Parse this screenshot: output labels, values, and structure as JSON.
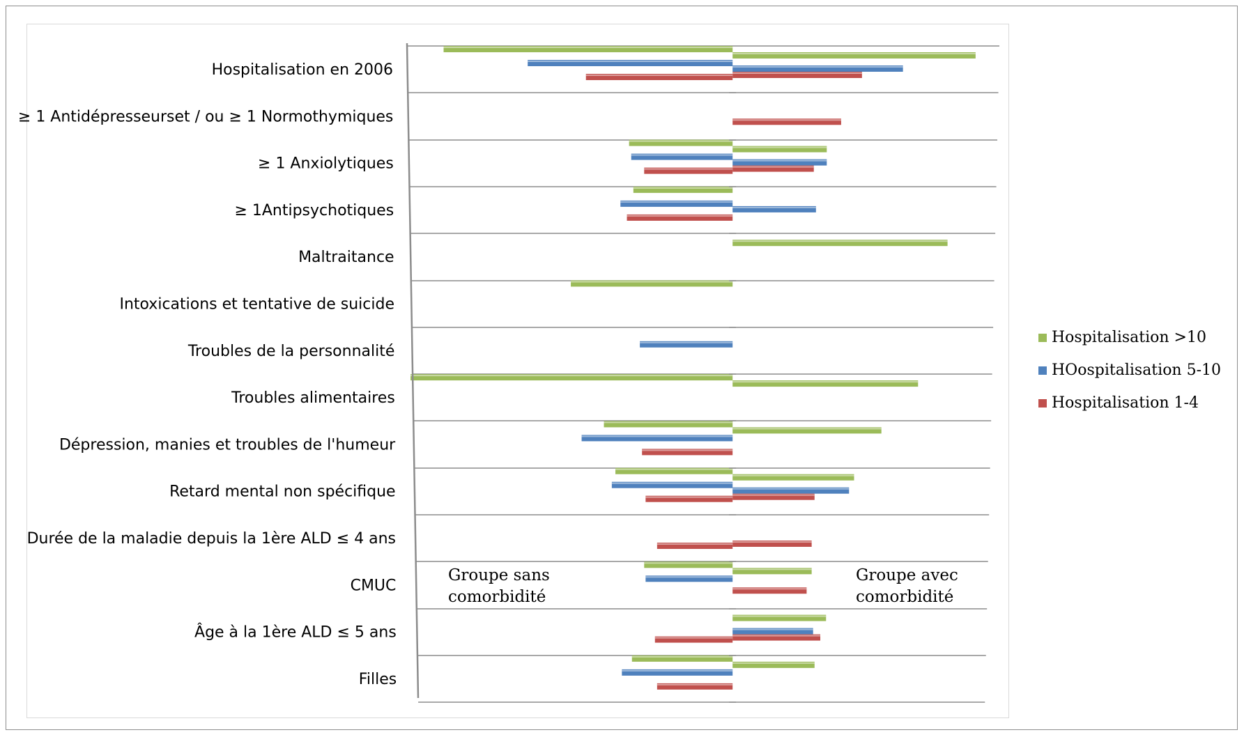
{
  "chart_data": {
    "type": "bar",
    "orientation": "horizontal",
    "title": "",
    "xlabel": "",
    "ylabel": "",
    "categories": [
      "Hospitalisation en 2006",
      "≥ 1 Antidépresseurset / ou ≥ 1 Normothymiques",
      "≥ 1  Anxiolytiques",
      "≥ 1Antipsychotiques",
      "Maltraitance",
      "Intoxications et tentative de suicide",
      "Troubles de la personnalité",
      "Troubles alimentaires",
      "Dépression, manies et troubles de l'humeur",
      "Retard mental non spécifique",
      "Durée de la maladie depuis la 1ère ALD ≤ 4 ans",
      "CMUC",
      "Âge à la 1ère ALD ≤ 5 ans",
      "Filles"
    ],
    "xlim": [
      -450,
      375
    ],
    "grid": true,
    "legend_position": "right",
    "series": [
      {
        "name": "Hospitalisation >10",
        "color": "#9bbb59",
        "left": [
          402,
          null,
          144,
          138,
          null,
          225,
          null,
          448,
          179,
          163,
          null,
          123,
          null,
          140
        ],
        "right": [
          338,
          null,
          131,
          null,
          299,
          null,
          null,
          258,
          207,
          169,
          null,
          110,
          130,
          114
        ]
      },
      {
        "name": "HOospitalisation 5-10",
        "color": "#4f81bd",
        "left": [
          285,
          null,
          141,
          156,
          null,
          null,
          129,
          null,
          210,
          168,
          null,
          121,
          null,
          154
        ],
        "right": [
          237,
          null,
          131,
          116,
          null,
          null,
          null,
          null,
          null,
          162,
          null,
          null,
          112,
          null
        ]
      },
      {
        "name": "Hospitalisation 1-4",
        "color": "#c0504d",
        "left": [
          204,
          null,
          123,
          147,
          null,
          null,
          null,
          null,
          126,
          121,
          105,
          null,
          108,
          105
        ],
        "right": [
          180,
          151,
          113,
          null,
          null,
          null,
          null,
          null,
          null,
          114,
          110,
          103,
          122,
          null
        ]
      }
    ],
    "annotations": [
      "Groupe sans comorbidité",
      "Groupe avec comorbidité"
    ]
  }
}
